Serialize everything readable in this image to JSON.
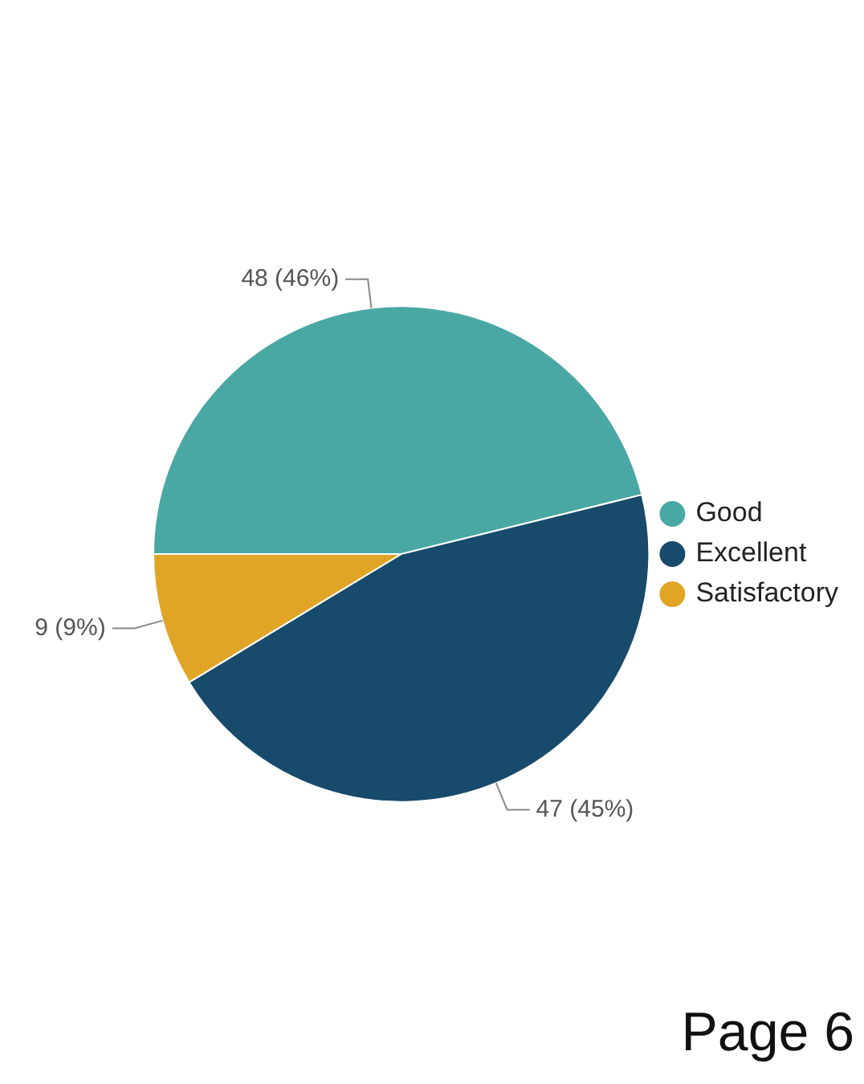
{
  "chart_data": {
    "type": "pie",
    "categories": [
      "Good",
      "Excellent",
      "Satisfactory"
    ],
    "values": [
      48,
      47,
      9
    ],
    "colors": [
      "#4aa8a4",
      "#174a6b",
      "#e0a526"
    ],
    "value_labels": [
      "48 (46%)",
      "47 (45%)",
      "9 (9%)"
    ],
    "legend": "right",
    "annotations": [
      "Page 6"
    ]
  }
}
